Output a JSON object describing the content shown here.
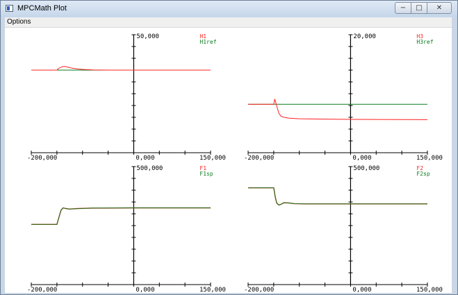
{
  "window": {
    "title": "MPCMath Plot",
    "controls": {
      "minimize": "−",
      "maximize": "□",
      "close": "✕"
    }
  },
  "menu": {
    "options_label": "Options"
  },
  "colors": {
    "series_a": "#ff2020",
    "series_b": "#0a7a1e",
    "axis": "#000000"
  },
  "plots": [
    {
      "id": "h1",
      "x_min_label": "-200,000",
      "x_zero_label": "0,000",
      "x_max_label": "150,000",
      "y_max_label": "50,000",
      "legend_a": "H1",
      "legend_b": "H1ref"
    },
    {
      "id": "h3",
      "x_min_label": "-200,000",
      "x_zero_label": "0,000",
      "x_max_label": "150,000",
      "y_max_label": "20,000",
      "legend_a": "H3",
      "legend_b": "H3ref"
    },
    {
      "id": "f1",
      "x_min_label": "-200,000",
      "x_zero_label": "0,000",
      "x_max_label": "150,000",
      "y_max_label": "500,000",
      "legend_a": "F1",
      "legend_b": "F1sp"
    },
    {
      "id": "f2",
      "x_min_label": "-200,000",
      "x_zero_label": "0,000",
      "x_max_label": "150,000",
      "y_max_label": "500,000",
      "legend_a": "F2",
      "legend_b": "F2sp"
    }
  ],
  "chart_data": [
    {
      "type": "line",
      "xlim": [
        -200,
        150
      ],
      "ylim": [
        0,
        50
      ],
      "series": [
        {
          "name": "H1",
          "x": [
            -200,
            -150,
            -147,
            -140,
            -135,
            -128,
            -120,
            -110,
            -100,
            -80,
            -50,
            0,
            150
          ],
          "y": [
            35,
            35,
            35.7,
            36.4,
            36.6,
            36.2,
            35.8,
            35.5,
            35.3,
            35.1,
            35,
            35,
            35
          ]
        },
        {
          "name": "H1ref",
          "x": [
            -200,
            150
          ],
          "y": [
            35,
            35
          ]
        }
      ]
    },
    {
      "type": "line",
      "xlim": [
        -200,
        150
      ],
      "ylim": [
        0,
        20
      ],
      "series": [
        {
          "name": "H3",
          "x": [
            -200,
            -150,
            -148,
            -146,
            -143,
            -140,
            -136,
            -130,
            -120,
            -100,
            -50,
            0,
            150
          ],
          "y": [
            8.2,
            8.2,
            9.1,
            8.5,
            7.6,
            6.7,
            6.2,
            6.0,
            5.85,
            5.75,
            5.7,
            5.65,
            5.6
          ]
        },
        {
          "name": "H3ref",
          "x": [
            -200,
            150
          ],
          "y": [
            8.2,
            8.2
          ]
        }
      ]
    },
    {
      "type": "line",
      "xlim": [
        -200,
        150
      ],
      "ylim": [
        0,
        500
      ],
      "series": [
        {
          "name": "F1",
          "x": [
            -200,
            -150,
            -146,
            -142,
            -138,
            -132,
            -125,
            -110,
            -80,
            0,
            150
          ],
          "y": [
            255,
            255,
            285,
            315,
            325,
            322,
            320,
            322,
            324,
            325,
            325
          ]
        },
        {
          "name": "F1sp",
          "x": [
            -200,
            -150,
            -146,
            -142,
            -138,
            -132,
            -125,
            -110,
            -80,
            0,
            150
          ],
          "y": [
            255,
            255,
            285,
            315,
            325,
            322,
            320,
            322,
            324,
            325,
            325
          ]
        }
      ]
    },
    {
      "type": "line",
      "xlim": [
        -200,
        150
      ],
      "ylim": [
        0,
        500
      ],
      "series": [
        {
          "name": "F2",
          "x": [
            -200,
            -150,
            -147,
            -144,
            -140,
            -136,
            -130,
            -120,
            -110,
            -90,
            -50,
            0,
            150
          ],
          "y": [
            410,
            410,
            370,
            345,
            337,
            340,
            347,
            346,
            343,
            342,
            342,
            342,
            342
          ]
        },
        {
          "name": "F2sp",
          "x": [
            -200,
            -150,
            -147,
            -144,
            -140,
            -136,
            -130,
            -120,
            -110,
            -90,
            -50,
            0,
            150
          ],
          "y": [
            410,
            410,
            370,
            345,
            337,
            340,
            347,
            346,
            343,
            342,
            342,
            342,
            342
          ]
        }
      ]
    }
  ]
}
